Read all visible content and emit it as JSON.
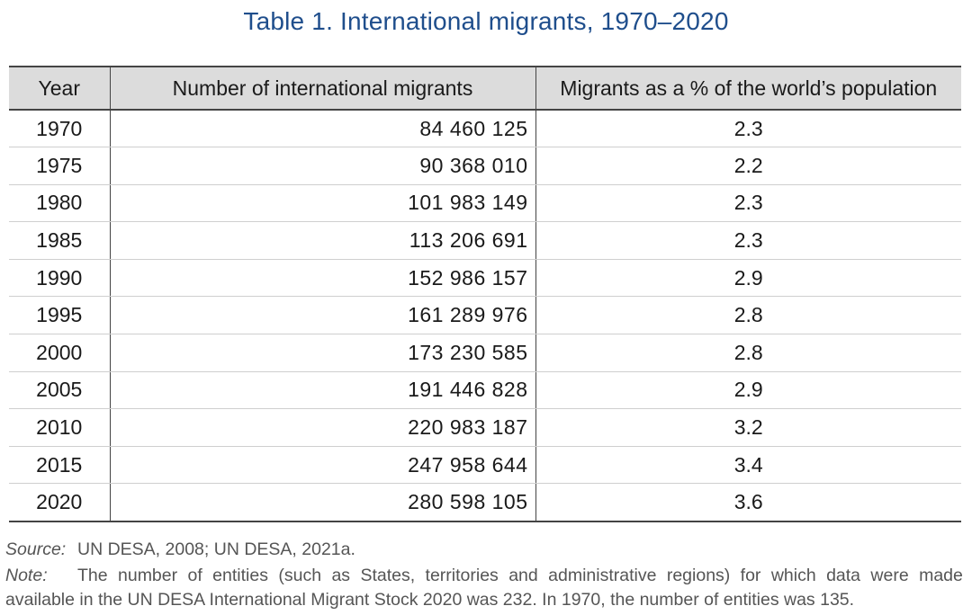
{
  "title": "Table 1. International migrants, 1970–2020",
  "table": {
    "headers": [
      "Year",
      "Number of international migrants",
      "Migrants as a % of the world’s population"
    ],
    "rows": [
      {
        "year": "1970",
        "number": "84 460 125",
        "percent": "2.3"
      },
      {
        "year": "1975",
        "number": "90 368  010",
        "percent": "2.2"
      },
      {
        "year": "1980",
        "number": "101 983 149",
        "percent": "2.3"
      },
      {
        "year": "1985",
        "number": "113 206 691",
        "percent": "2.3"
      },
      {
        "year": "1990",
        "number": "152 986 157",
        "percent": "2.9"
      },
      {
        "year": "1995",
        "number": "161 289 976",
        "percent": "2.8"
      },
      {
        "year": "2000",
        "number": "173 230 585",
        "percent": "2.8"
      },
      {
        "year": "2005",
        "number": "191 446 828",
        "percent": "2.9"
      },
      {
        "year": "2010",
        "number": "220 983 187",
        "percent": "3.2"
      },
      {
        "year": "2015",
        "number": "247 958 644",
        "percent": "3.4"
      },
      {
        "year": "2020",
        "number": "280 598 105",
        "percent": "3.6"
      }
    ]
  },
  "footnotes": {
    "source_label": "Source:",
    "source_text": "UN DESA, 2008; UN DESA, 2021a.",
    "note_label": "Note:",
    "note_line1": "The number of entities (such as States, territories and administrative regions) for which data were made",
    "note_line2": "available in the UN DESA International Migrant Stock 2020 was 232. In 1970, the number of entities was 135."
  }
}
